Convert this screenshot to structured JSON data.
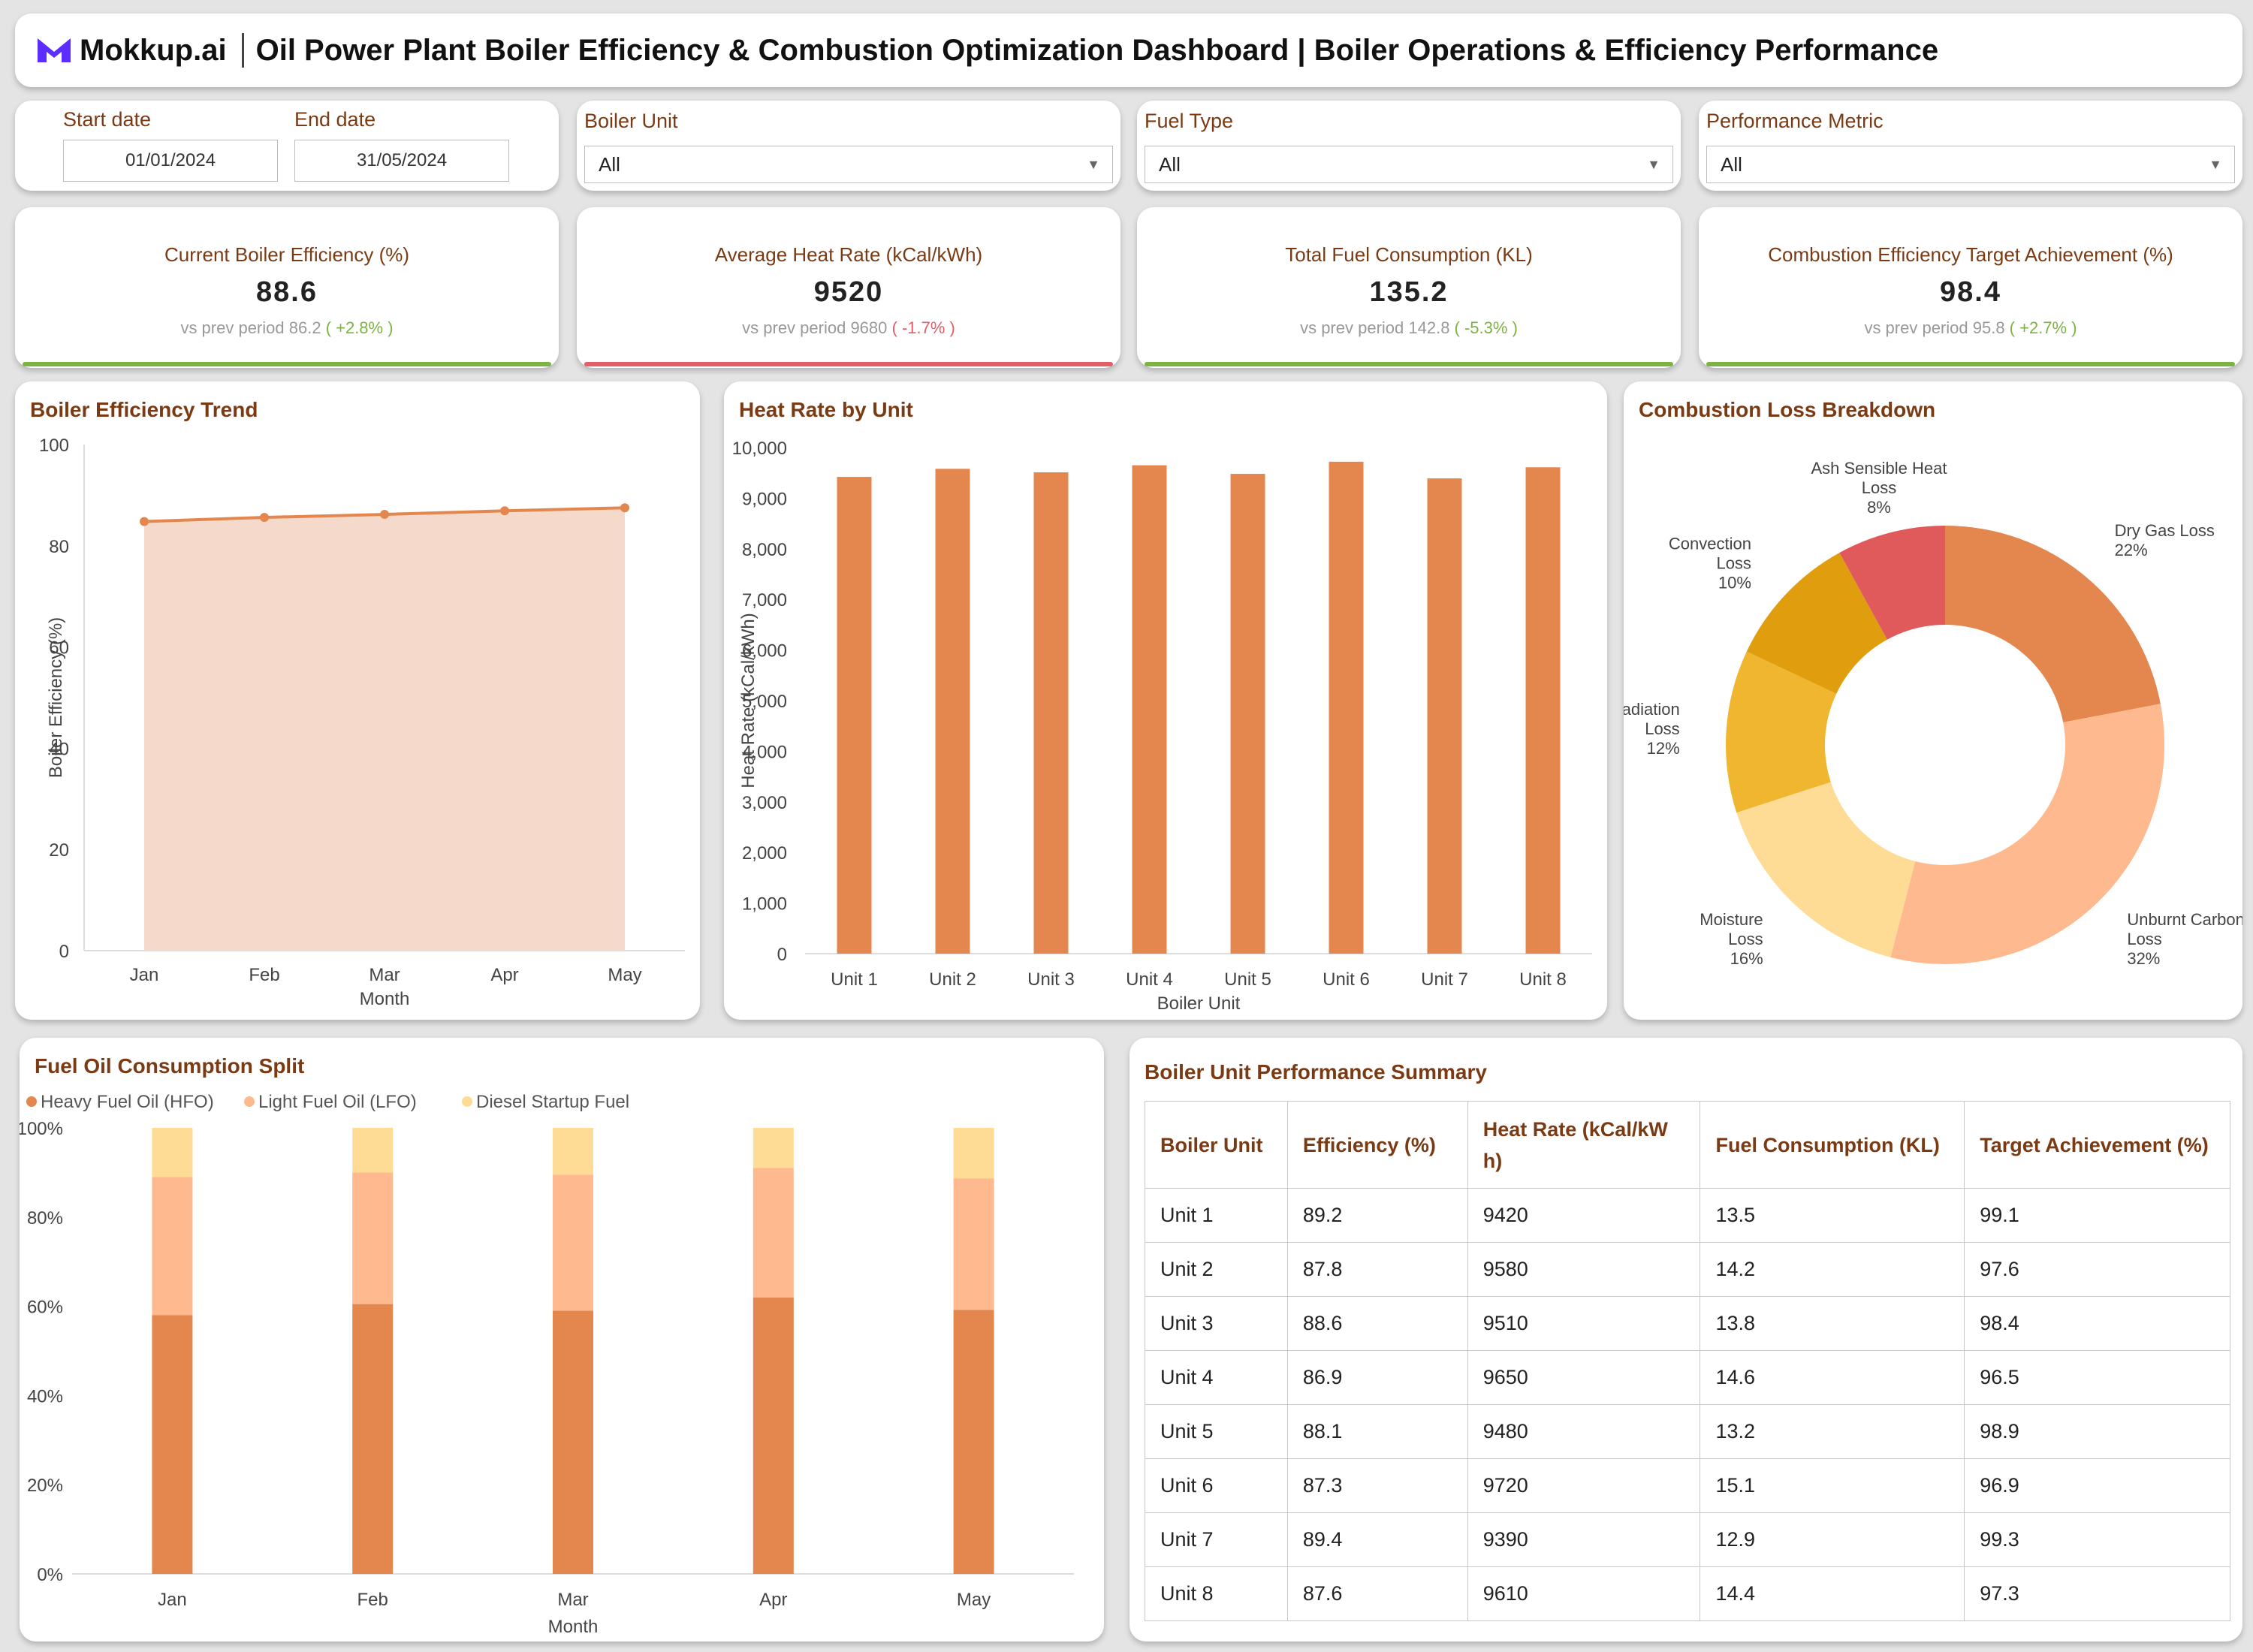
{
  "header": {
    "brand": "Mokkup.ai",
    "title": "Oil Power Plant Boiler Efficiency & Combustion Optimization Dashboard | Boiler Operations & Efficiency Performance"
  },
  "filters": {
    "start_label": "Start date",
    "start_value": "01/01/2024",
    "end_label": "End date",
    "end_value": "31/05/2024",
    "boiler_label": "Boiler Unit",
    "boiler_value": "All",
    "fuel_label": "Fuel Type",
    "fuel_value": "All",
    "metric_label": "Performance Metric",
    "metric_value": "All"
  },
  "colors": {
    "accent": "#e3874f",
    "positive": "#7cb342",
    "negative": "#e35d6a",
    "title": "#7a3b14"
  },
  "kpis": [
    {
      "title": "Current Boiler Efficiency (%)",
      "value": "88.6",
      "prev_label": "vs prev period",
      "prev": "86.2",
      "change": "( +2.8% )",
      "trend": "positive"
    },
    {
      "title": "Average Heat Rate (kCal/kWh)",
      "value": "9520",
      "prev_label": "vs prev period",
      "prev": "9680",
      "change": "( -1.7% )",
      "trend": "negative"
    },
    {
      "title": "Total Fuel Consumption (KL)",
      "value": "135.2",
      "prev_label": "vs prev period",
      "prev": "142.8",
      "change": "( -5.3% )",
      "trend": "positive"
    },
    {
      "title": "Combustion Efficiency Target Achievement (%)",
      "value": "98.4",
      "prev_label": "vs prev period",
      "prev": "95.8",
      "change": "( +2.7% )",
      "trend": "positive"
    }
  ],
  "chart_data": [
    {
      "id": "eff",
      "type": "area",
      "title": "Boiler Efficiency Trend",
      "xlabel": "Month",
      "ylabel": "Boiler Efficiency (%)",
      "categories": [
        "Jan",
        "Feb",
        "Mar",
        "Apr",
        "May"
      ],
      "values": [
        84.8,
        85.6,
        86.2,
        86.9,
        87.5
      ],
      "ylim": [
        0,
        100
      ],
      "yticks": [
        0,
        20,
        40,
        60,
        80,
        100
      ]
    },
    {
      "id": "heat",
      "type": "bar",
      "title": "Heat Rate by Unit",
      "xlabel": "Boiler Unit",
      "ylabel": "Heat Rate (kCal/kWh)",
      "categories": [
        "Unit 1",
        "Unit 2",
        "Unit 3",
        "Unit 4",
        "Unit 5",
        "Unit 6",
        "Unit 7",
        "Unit 8"
      ],
      "values": [
        9420,
        9580,
        9510,
        9650,
        9480,
        9720,
        9390,
        9610
      ],
      "ylim": [
        0,
        10000
      ],
      "yticks": [
        "0",
        "1,000",
        "2,000",
        "3,000",
        "4,000",
        "5,000",
        "6,000",
        "7,000",
        "8,000",
        "9,000",
        "10,000"
      ]
    },
    {
      "id": "loss",
      "type": "pie",
      "title": "Combustion Loss Breakdown",
      "slices": [
        {
          "label": [
            "Dry Gas Loss"
          ],
          "pct": "22%",
          "value": 22,
          "color": "#e3874f"
        },
        {
          "label": [
            "Unburnt Carbon",
            "Loss"
          ],
          "pct": "32%",
          "value": 32,
          "color": "#ffb98e"
        },
        {
          "label": [
            "Moisture",
            "Loss"
          ],
          "pct": "16%",
          "value": 16,
          "color": "#ffdc95"
        },
        {
          "label": [
            "Radiation",
            "Loss"
          ],
          "pct": "12%",
          "value": 12,
          "color": "#f0b630"
        },
        {
          "label": [
            "Convection",
            "Loss"
          ],
          "pct": "10%",
          "value": 10,
          "color": "#e09e0e"
        },
        {
          "label": [
            "Ash Sensible Heat",
            "Loss"
          ],
          "pct": "8%",
          "value": 8,
          "color": "#e05a5c"
        }
      ]
    },
    {
      "id": "fuel",
      "type": "bar",
      "stacked": true,
      "title": "Fuel Oil Consumption Split",
      "xlabel": "Month",
      "categories": [
        "Jan",
        "Feb",
        "Mar",
        "Apr",
        "May"
      ],
      "series": [
        {
          "name": "Heavy Fuel Oil (HFO)",
          "values": [
            58,
            60.5,
            59,
            62,
            59.2
          ],
          "color": "#e3874f"
        },
        {
          "name": "Light Fuel Oil (LFO)",
          "values": [
            31,
            29.5,
            30.5,
            29,
            29.5
          ],
          "color": "#ffb98e"
        },
        {
          "name": "Diesel Startup Fuel",
          "values": [
            11,
            10,
            10.5,
            9,
            11.3
          ],
          "color": "#ffdc95"
        }
      ],
      "ylim": [
        0,
        100
      ],
      "yticks": [
        "0%",
        "20%",
        "40%",
        "60%",
        "80%",
        "100%"
      ]
    }
  ],
  "table": {
    "title": "Boiler Unit Performance Summary",
    "headers": [
      "Boiler Unit",
      "Efficiency (%)",
      "Heat Rate (kCal/kW h)",
      "Fuel Consumption (KL)",
      "Target Achievement (%)"
    ],
    "rows": [
      [
        "Unit 1",
        "89.2",
        "9420",
        "13.5",
        "99.1"
      ],
      [
        "Unit 2",
        "87.8",
        "9580",
        "14.2",
        "97.6"
      ],
      [
        "Unit 3",
        "88.6",
        "9510",
        "13.8",
        "98.4"
      ],
      [
        "Unit 4",
        "86.9",
        "9650",
        "14.6",
        "96.5"
      ],
      [
        "Unit 5",
        "88.1",
        "9480",
        "13.2",
        "98.9"
      ],
      [
        "Unit 6",
        "87.3",
        "9720",
        "15.1",
        "96.9"
      ],
      [
        "Unit 7",
        "89.4",
        "9390",
        "12.9",
        "99.3"
      ],
      [
        "Unit 8",
        "87.6",
        "9610",
        "14.4",
        "97.3"
      ]
    ]
  }
}
